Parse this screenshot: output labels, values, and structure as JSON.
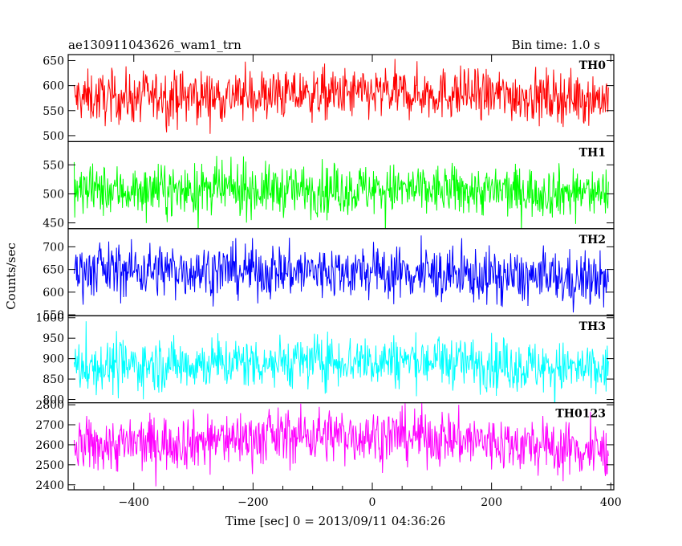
{
  "chart_data": {
    "type": "line",
    "title_left": "ae130911043626_wam1_trn",
    "title_right": "Bin time: 1.0 s",
    "ylabel": "Counts/sec",
    "xlabel": "Time [sec] 0 = 2013/09/11 04:36:26",
    "xlim": [
      -510,
      405
    ],
    "xticks": [
      -400,
      -200,
      0,
      200,
      400
    ],
    "grid": false,
    "panels": [
      {
        "name": "TH0",
        "color": "#ff0000",
        "ylim": [
          488,
          662
        ],
        "yticks": [
          500,
          550,
          600,
          650
        ],
        "mean": 578,
        "amplitude": 26,
        "trend": [
          [
            -500,
            575
          ],
          [
            -100,
            582
          ],
          [
            100,
            585
          ],
          [
            400,
            575
          ]
        ]
      },
      {
        "name": "TH1",
        "color": "#00ff00",
        "ylim": [
          440,
          590
        ],
        "yticks": [
          450,
          500,
          550
        ],
        "mean": 505,
        "amplitude": 22,
        "trend": [
          [
            -500,
            505
          ],
          [
            0,
            508
          ],
          [
            400,
            502
          ]
        ]
      },
      {
        "name": "TH2",
        "color": "#0000ff",
        "ylim": [
          548,
          740
        ],
        "yticks": [
          550,
          600,
          650,
          700
        ],
        "mean": 645,
        "amplitude": 30,
        "trend": [
          [
            -500,
            650
          ],
          [
            0,
            645
          ],
          [
            400,
            625
          ]
        ]
      },
      {
        "name": "TH3",
        "color": "#00ffff",
        "ylim": [
          792,
          1005
        ],
        "yticks": [
          800,
          850,
          900,
          950,
          1000
        ],
        "mean": 885,
        "amplitude": 32,
        "trend": [
          [
            -500,
            880
          ],
          [
            -100,
            895
          ],
          [
            100,
            895
          ],
          [
            400,
            870
          ]
        ]
      },
      {
        "name": "TH0123",
        "color": "#ff00ff",
        "ylim": [
          2375,
          2810
        ],
        "yticks": [
          2400,
          2500,
          2600,
          2700,
          2800
        ],
        "mean": 2610,
        "amplitude": 70,
        "trend": [
          [
            -500,
            2590
          ],
          [
            -100,
            2650
          ],
          [
            100,
            2640
          ],
          [
            400,
            2560
          ]
        ]
      }
    ]
  }
}
